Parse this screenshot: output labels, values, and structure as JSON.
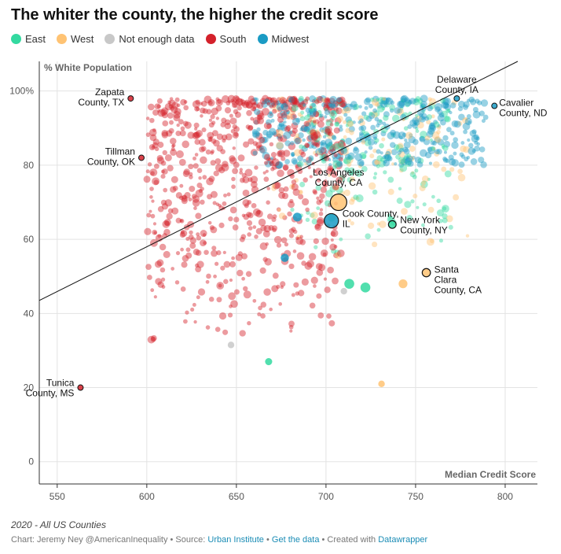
{
  "title": "The whiter the county, the higher the credit score",
  "legend": [
    {
      "label": "East",
      "color": "#33d9a0"
    },
    {
      "label": "West",
      "color": "#ffc373"
    },
    {
      "label": "Not enough data",
      "color": "#c8c8c8"
    },
    {
      "label": "South",
      "color": "#d4212b"
    },
    {
      "label": "Midwest",
      "color": "#1a9bc4"
    }
  ],
  "notes": "2020 - All US Counties",
  "credits": {
    "prefix": "Chart: Jeremy Ney @AmericanInequality • Source: ",
    "source": "Urban Institute",
    "sep1": " • ",
    "data_link": "Get the data",
    "sep2": " • Created with ",
    "tool": "Datawrapper"
  },
  "chart_data": {
    "type": "scatter",
    "title": "The whiter the county, the higher the credit score",
    "xlabel": "Median Credit Score",
    "ylabel": "% White Population",
    "xlim": [
      540,
      818
    ],
    "ylim": [
      -6,
      108
    ],
    "x_ticks": [
      "550",
      "600",
      "650",
      "700",
      "750",
      "800"
    ],
    "y_ticks": [
      "0",
      "20",
      "40",
      "60",
      "80",
      "100%"
    ],
    "trendline": [
      [
        540,
        43.5
      ],
      [
        807,
        108
      ]
    ],
    "annotations": [
      {
        "label": "Zapata\nCounty, TX",
        "x": 591,
        "y": 98,
        "region": "South"
      },
      {
        "label": "Tillman\nCounty, OK",
        "x": 597,
        "y": 82,
        "region": "South"
      },
      {
        "label": "Tunica\nCounty, MS",
        "x": 563,
        "y": 20,
        "region": "South"
      },
      {
        "label": "Delaware\nCounty, IA",
        "x": 773,
        "y": 98,
        "region": "Midwest"
      },
      {
        "label": "Cavalier\nCounty, ND",
        "x": 794,
        "y": 96,
        "region": "Midwest"
      },
      {
        "label": "Los Angeles\nCounty, CA",
        "x": 707,
        "y": 70,
        "region": "West"
      },
      {
        "label": "Cook County,\nIL",
        "x": 703,
        "y": 65,
        "region": "Midwest"
      },
      {
        "label": "New York\nCounty, NY",
        "x": 737,
        "y": 64,
        "region": "East"
      },
      {
        "label": "Santa\nClara\nCounty, CA",
        "x": 756,
        "y": 51,
        "region": "West"
      }
    ],
    "points": [
      {
        "x": 707,
        "y": 70,
        "region": "West",
        "size": 3
      },
      {
        "x": 703,
        "y": 65,
        "region": "Midwest",
        "size": 2.6
      },
      {
        "x": 756,
        "y": 51,
        "region": "West",
        "size": 1.5
      },
      {
        "x": 737,
        "y": 64,
        "region": "East",
        "size": 1.4
      },
      {
        "x": 591,
        "y": 98,
        "region": "South",
        "size": 1
      },
      {
        "x": 597,
        "y": 82,
        "region": "South",
        "size": 1
      },
      {
        "x": 563,
        "y": 20,
        "region": "South",
        "size": 1
      },
      {
        "x": 773,
        "y": 98,
        "region": "Midwest",
        "size": 1
      },
      {
        "x": 794,
        "y": 96,
        "region": "Midwest",
        "size": 1
      },
      {
        "x": 722,
        "y": 47,
        "region": "East",
        "size": 1.8
      },
      {
        "x": 713,
        "y": 48,
        "region": "East",
        "size": 1.8
      },
      {
        "x": 743,
        "y": 48,
        "region": "West",
        "size": 1.6
      },
      {
        "x": 684,
        "y": 66,
        "region": "Midwest",
        "size": 1.6
      },
      {
        "x": 677,
        "y": 55,
        "region": "Midwest",
        "size": 1.5
      },
      {
        "x": 668,
        "y": 27,
        "region": "East",
        "size": 1.3
      },
      {
        "x": 731,
        "y": 21,
        "region": "West",
        "size": 1.2
      },
      {
        "x": 710,
        "y": 46,
        "region": "Not enough data",
        "size": 1.2
      },
      {
        "x": 647,
        "y": 31.5,
        "region": "Not enough data",
        "size": 1.2
      }
    ]
  }
}
